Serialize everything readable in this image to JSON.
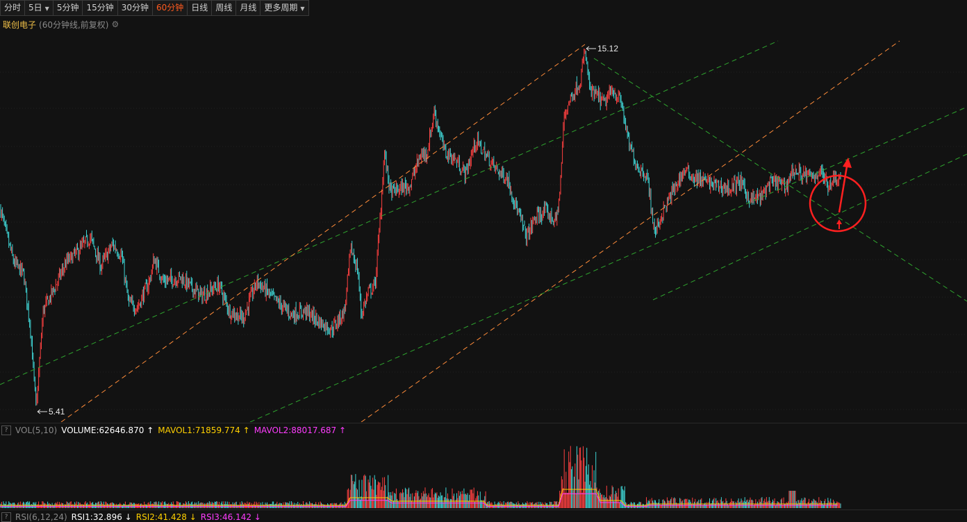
{
  "toolbar": {
    "buttons": [
      {
        "label": "分时",
        "dropdown": false,
        "active": false
      },
      {
        "label": "5日",
        "dropdown": true,
        "active": false
      },
      {
        "label": "5分钟",
        "dropdown": false,
        "active": false
      },
      {
        "label": "15分钟",
        "dropdown": false,
        "active": false
      },
      {
        "label": "30分钟",
        "dropdown": false,
        "active": false
      },
      {
        "label": "60分钟",
        "dropdown": false,
        "active": true
      },
      {
        "label": "日线",
        "dropdown": false,
        "active": false
      },
      {
        "label": "周线",
        "dropdown": false,
        "active": false
      },
      {
        "label": "月线",
        "dropdown": false,
        "active": false
      },
      {
        "label": "更多周期",
        "dropdown": true,
        "active": false
      }
    ]
  },
  "stock": {
    "name": "联创电子",
    "info": "(60分钟线,前复权)"
  },
  "chart_data": {
    "type": "candlestick",
    "price_high_label": "15.12",
    "price_low_label": "5.41",
    "price_high": 15.12,
    "price_low": 5.41,
    "colors": {
      "up": "#ff4040",
      "down": "#3fd4d4",
      "trend_orange": "#ff8c3a",
      "trend_green": "#2fa52f",
      "annotation": "#ff2020"
    }
  },
  "volume": {
    "help": "?",
    "name": "VOL(5,10)",
    "volume": "VOLUME:62646.870",
    "volume_arrow": "↑",
    "mavol1": "MAVOL1:71859.774",
    "mavol1_arrow": "↑",
    "mavol2": "MAVOL2:88017.687",
    "mavol2_arrow": "↑",
    "colors": {
      "volume": "#ffffff",
      "mavol1": "#ffd000",
      "mavol2": "#ff3cff"
    }
  },
  "rsi": {
    "help": "?",
    "name": "RSI(6,12,24)",
    "rsi1": "RSI1:32.896",
    "rsi1_arrow": "↓",
    "rsi2": "RSI2:41.428",
    "rsi2_arrow": "↓",
    "rsi3": "RSI3:46.142",
    "rsi3_arrow": "↓",
    "colors": {
      "rsi1": "#ffffff",
      "rsi2": "#ffd000",
      "rsi3": "#ff3cff"
    }
  }
}
